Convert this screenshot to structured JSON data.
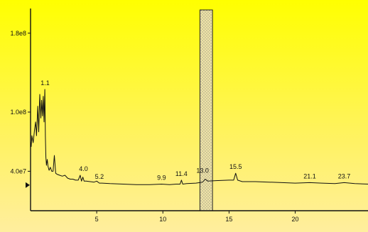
{
  "chart_data": {
    "type": "line",
    "title": "",
    "xlabel": "",
    "ylabel": "",
    "xlim": [
      0,
      25.5
    ],
    "ylim": [
      0,
      205000000.0
    ],
    "x_ticks": [
      {
        "value": 5,
        "label": "5"
      },
      {
        "value": 10,
        "label": "10"
      },
      {
        "value": 15,
        "label": "15"
      },
      {
        "value": 20,
        "label": "20"
      }
    ],
    "y_ticks": [
      {
        "value": 40000000.0,
        "label": "4.0e7"
      },
      {
        "value": 100000000.0,
        "label": "1.0e8"
      },
      {
        "value": 180000000.0,
        "label": "1.8e8"
      }
    ],
    "series": [
      {
        "color": "#111111",
        "x": [
          0.0,
          0.05,
          0.1,
          0.2,
          0.3,
          0.38,
          0.45,
          0.55,
          0.62,
          0.7,
          0.78,
          0.84,
          0.9,
          0.96,
          1.02,
          1.08,
          1.12,
          1.16,
          1.2,
          1.26,
          1.32,
          1.4,
          1.5,
          1.6,
          1.7,
          1.8,
          1.9,
          2.0,
          2.2,
          2.4,
          2.6,
          2.8,
          3.0,
          3.2,
          3.4,
          3.6,
          3.75,
          3.85,
          3.95,
          4.05,
          4.2,
          4.5,
          4.8,
          5.0,
          5.2,
          5.4,
          6.0,
          7.0,
          8.0,
          9.0,
          9.9,
          10.5,
          11.0,
          11.3,
          11.4,
          11.5,
          11.8,
          12.5,
          13.0,
          13.2,
          13.4,
          14.0,
          15.0,
          15.35,
          15.5,
          15.65,
          16.0,
          17.0,
          18.0,
          19.0,
          20.0,
          21.1,
          22.0,
          23.0,
          23.7,
          24.5,
          25.5
        ],
        "y": [
          70000000.0,
          65000000.0,
          76000000.0,
          69000000.0,
          82000000.0,
          90000000.0,
          76000000.0,
          106000000.0,
          80000000.0,
          118000000.0,
          94000000.0,
          112000000.0,
          96000000.0,
          116000000.0,
          90000000.0,
          123000000.0,
          75000000.0,
          54000000.0,
          46000000.0,
          52000000.0,
          45000000.0,
          41000000.0,
          44000000.0,
          40000000.0,
          40000000.0,
          56000000.0,
          38000000.0,
          37000000.0,
          36000000.0,
          35000000.0,
          36000000.0,
          33000000.0,
          32000000.0,
          32000000.0,
          31000000.0,
          31000000.0,
          36000000.0,
          30000000.0,
          34000000.0,
          30000000.0,
          30000000.0,
          29500000.0,
          29000000.0,
          30000000.0,
          28000000.0,
          28000000.0,
          27500000.0,
          27000000.0,
          26500000.0,
          26500000.0,
          27000000.0,
          26500000.0,
          27000000.0,
          27000000.0,
          31000000.0,
          27000000.0,
          27500000.0,
          28000000.0,
          29000000.0,
          32000000.0,
          30000000.0,
          30500000.0,
          31000000.0,
          31000000.0,
          38000000.0,
          31000000.0,
          29500000.0,
          29500000.0,
          29000000.0,
          28500000.0,
          28000000.0,
          28500000.0,
          28000000.0,
          27500000.0,
          28500000.0,
          27500000.0,
          27000000.0
        ]
      }
    ],
    "peak_labels": [
      {
        "text": "1.1",
        "x": 1.1,
        "y": 123000000.0
      },
      {
        "text": "4.0",
        "x": 4.0,
        "y": 36000000.0
      },
      {
        "text": "5.2",
        "x": 5.2,
        "y": 28000000.0
      },
      {
        "text": "9.9",
        "x": 9.9,
        "y": 27000000.0
      },
      {
        "text": "11.4",
        "x": 11.4,
        "y": 31000000.0
      },
      {
        "text": "13.0",
        "x": 13.0,
        "y": 34000000.0
      },
      {
        "text": "15.5",
        "x": 15.5,
        "y": 38000000.0
      },
      {
        "text": "21.1",
        "x": 21.1,
        "y": 28500000.0
      },
      {
        "text": "23.7",
        "x": 23.7,
        "y": 28500000.0
      }
    ],
    "highlight_band": {
      "x_start": 12.8,
      "x_end": 13.75,
      "fill": "#e8df9a",
      "pattern": "stipple"
    },
    "baseline_marker": {
      "y": 26000000.0,
      "shape": "triangle-right"
    },
    "grid": false,
    "legend": "none"
  }
}
